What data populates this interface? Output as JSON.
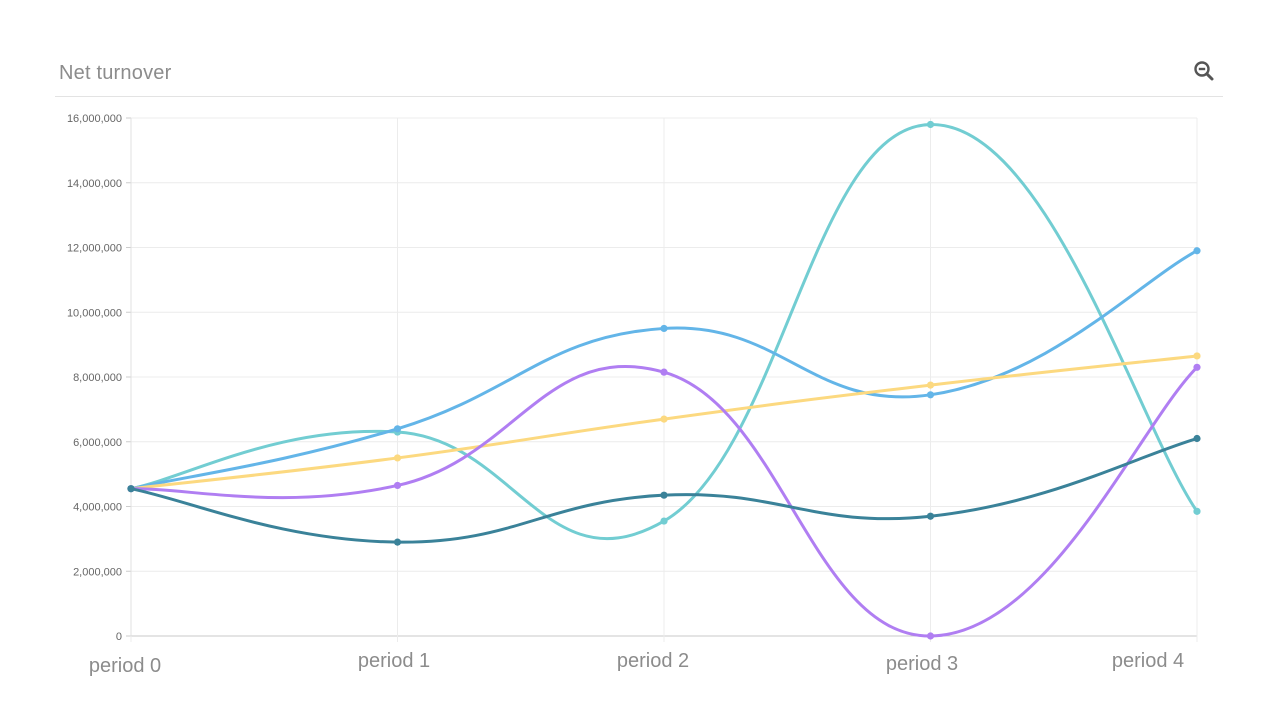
{
  "header": {
    "title": "Net turnover",
    "zoom_icon": "zoom-out-icon"
  },
  "chart_data": {
    "type": "line",
    "title": "Net turnover",
    "xlabel": "",
    "ylabel": "",
    "categories": [
      "period 0",
      "period 1",
      "period 2",
      "period 3",
      "period 4"
    ],
    "ylim": [
      0,
      16000000
    ],
    "yticks": [
      "0",
      "2,000,000",
      "4,000,000",
      "6,000,000",
      "8,000,000",
      "10,000,000",
      "12,000,000",
      "14,000,000",
      "16,000,000"
    ],
    "grid": true,
    "legend": "none",
    "series": [
      {
        "color": "#72cdd2",
        "values": [
          4550000,
          6300000,
          3550000,
          15800000,
          3850000
        ]
      },
      {
        "color": "#63b5e8",
        "values": [
          4550000,
          6400000,
          9500000,
          7450000,
          11900000
        ]
      },
      {
        "color": "#fcd980",
        "values": [
          4550000,
          5500000,
          6700000,
          7750000,
          8650000
        ]
      },
      {
        "color": "#b07ef2",
        "values": [
          4550000,
          4650000,
          8150000,
          0,
          8300000
        ]
      },
      {
        "color": "#3a8299",
        "values": [
          4550000,
          2900000,
          4350000,
          3700000,
          6100000
        ]
      }
    ]
  }
}
